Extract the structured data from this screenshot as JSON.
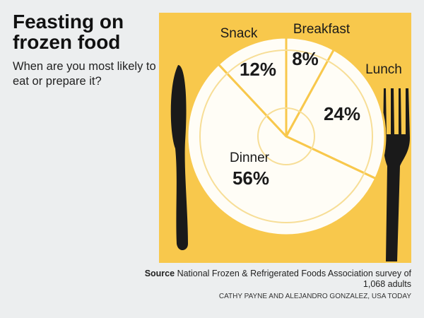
{
  "chart_data": {
    "type": "pie",
    "title": "Feasting on frozen food",
    "subtitle": "When are you most likely to eat or prepare it?",
    "categories": [
      "Breakfast",
      "Lunch",
      "Dinner",
      "Snack"
    ],
    "values": [
      8,
      24,
      56,
      12
    ],
    "value_labels": [
      "8%",
      "24%",
      "56%",
      "12%"
    ],
    "color": "#fffdf6",
    "line_color": "#f8c84c",
    "source_label": "Source",
    "source": "National Frozen & Refrigerated Foods Association survey of 1,068 adults",
    "credit": "CATHY PAYNE AND ALEJANDRO GONZALEZ, USA TODAY"
  }
}
